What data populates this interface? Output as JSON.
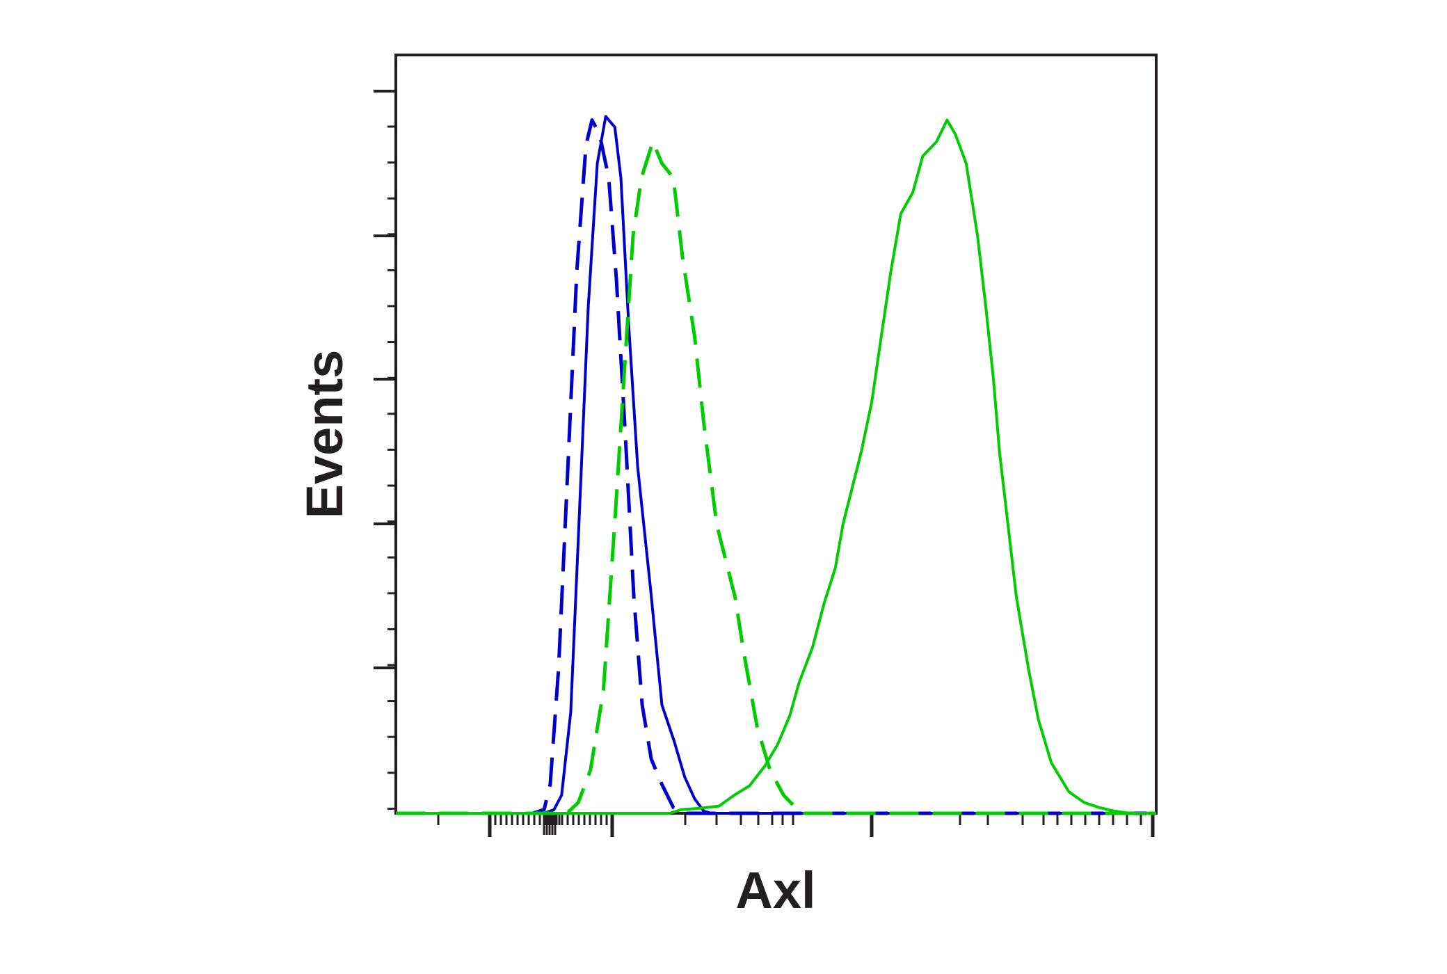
{
  "chart_data": {
    "type": "line",
    "title": "",
    "xlabel": "Axl",
    "ylabel": "Events",
    "x_scale": "log",
    "xlim": [
      0,
      100
    ],
    "ylim": [
      0,
      100
    ],
    "grid": false,
    "legend": "none",
    "x_tick_labels": [],
    "y_tick_labels": [],
    "series": [
      {
        "color": "#0000cc",
        "dash": "dashed",
        "points": [
          [
            0,
            0
          ],
          [
            18,
            0
          ],
          [
            19.5,
            0.5
          ],
          [
            20.3,
            4
          ],
          [
            21.4,
            20
          ],
          [
            22.5,
            45
          ],
          [
            23.8,
            75
          ],
          [
            25.0,
            92.5
          ],
          [
            25.8,
            96
          ],
          [
            26.8,
            94
          ],
          [
            28.0,
            88
          ],
          [
            29.0,
            74
          ],
          [
            30.2,
            52
          ],
          [
            31.3,
            30
          ],
          [
            32.4,
            15
          ],
          [
            33.6,
            7.5
          ],
          [
            35.0,
            4
          ],
          [
            36.5,
            0.8
          ],
          [
            37.5,
            0
          ],
          [
            100,
            0
          ]
        ]
      },
      {
        "color": "#0000cc",
        "dash": "solid",
        "points": [
          [
            0,
            0
          ],
          [
            19.5,
            0
          ],
          [
            20.8,
            0.5
          ],
          [
            21.8,
            2.5
          ],
          [
            23.0,
            14
          ],
          [
            24.0,
            38
          ],
          [
            25.3,
            70
          ],
          [
            26.5,
            90
          ],
          [
            27.6,
            96.5
          ],
          [
            28.8,
            95
          ],
          [
            29.6,
            88
          ],
          [
            30.6,
            68
          ],
          [
            31.8,
            48
          ],
          [
            33.5,
            31
          ],
          [
            35.0,
            15
          ],
          [
            36.6,
            10
          ],
          [
            38.0,
            5
          ],
          [
            39.3,
            2
          ],
          [
            40.5,
            0.3
          ],
          [
            41.5,
            0
          ],
          [
            100,
            0
          ]
        ]
      },
      {
        "color": "#00cc00",
        "dash": "dashed",
        "points": [
          [
            0,
            0
          ],
          [
            22.5,
            0
          ],
          [
            24.0,
            1.5
          ],
          [
            25.6,
            6
          ],
          [
            27.3,
            17
          ],
          [
            28.9,
            42
          ],
          [
            30.1,
            62
          ],
          [
            31.2,
            80
          ],
          [
            32.3,
            88
          ],
          [
            33.8,
            93
          ],
          [
            35.0,
            90
          ],
          [
            36.5,
            88
          ],
          [
            37.7,
            77
          ],
          [
            39.3,
            66
          ],
          [
            40.5,
            54
          ],
          [
            42.2,
            40
          ],
          [
            44.6,
            30
          ],
          [
            45.8,
            22
          ],
          [
            47.5,
            12
          ],
          [
            49.2,
            6
          ],
          [
            51.0,
            2.5
          ],
          [
            53.3,
            0
          ],
          [
            100,
            0
          ]
        ]
      },
      {
        "color": "#00cc00",
        "dash": "solid",
        "points": [
          [
            0,
            0
          ],
          [
            36.0,
            0
          ],
          [
            37.5,
            0.5
          ],
          [
            40.0,
            0.7
          ],
          [
            42.5,
            1
          ],
          [
            44.5,
            2.5
          ],
          [
            46.5,
            3.8
          ],
          [
            48.5,
            6.5
          ],
          [
            50.2,
            9.5
          ],
          [
            51.8,
            13.5
          ],
          [
            53.0,
            18
          ],
          [
            54.8,
            23
          ],
          [
            56.3,
            29
          ],
          [
            57.8,
            34
          ],
          [
            58.8,
            40
          ],
          [
            60.0,
            45
          ],
          [
            61.2,
            50
          ],
          [
            62.6,
            57
          ],
          [
            63.7,
            65
          ],
          [
            65.1,
            75
          ],
          [
            66.4,
            83
          ],
          [
            68.0,
            86
          ],
          [
            69.3,
            91
          ],
          [
            71.1,
            93
          ],
          [
            72.5,
            96
          ],
          [
            73.6,
            94
          ],
          [
            75.0,
            90
          ],
          [
            76.5,
            80
          ],
          [
            77.6,
            70
          ],
          [
            78.6,
            60
          ],
          [
            79.4,
            50
          ],
          [
            80.5,
            40
          ],
          [
            81.6,
            30
          ],
          [
            83.2,
            20
          ],
          [
            84.5,
            13
          ],
          [
            86.2,
            7
          ],
          [
            88.5,
            3
          ],
          [
            90.5,
            1.5
          ],
          [
            92.5,
            0.8
          ],
          [
            94.5,
            0.3
          ],
          [
            96.5,
            0
          ],
          [
            100,
            0
          ]
        ]
      }
    ]
  }
}
